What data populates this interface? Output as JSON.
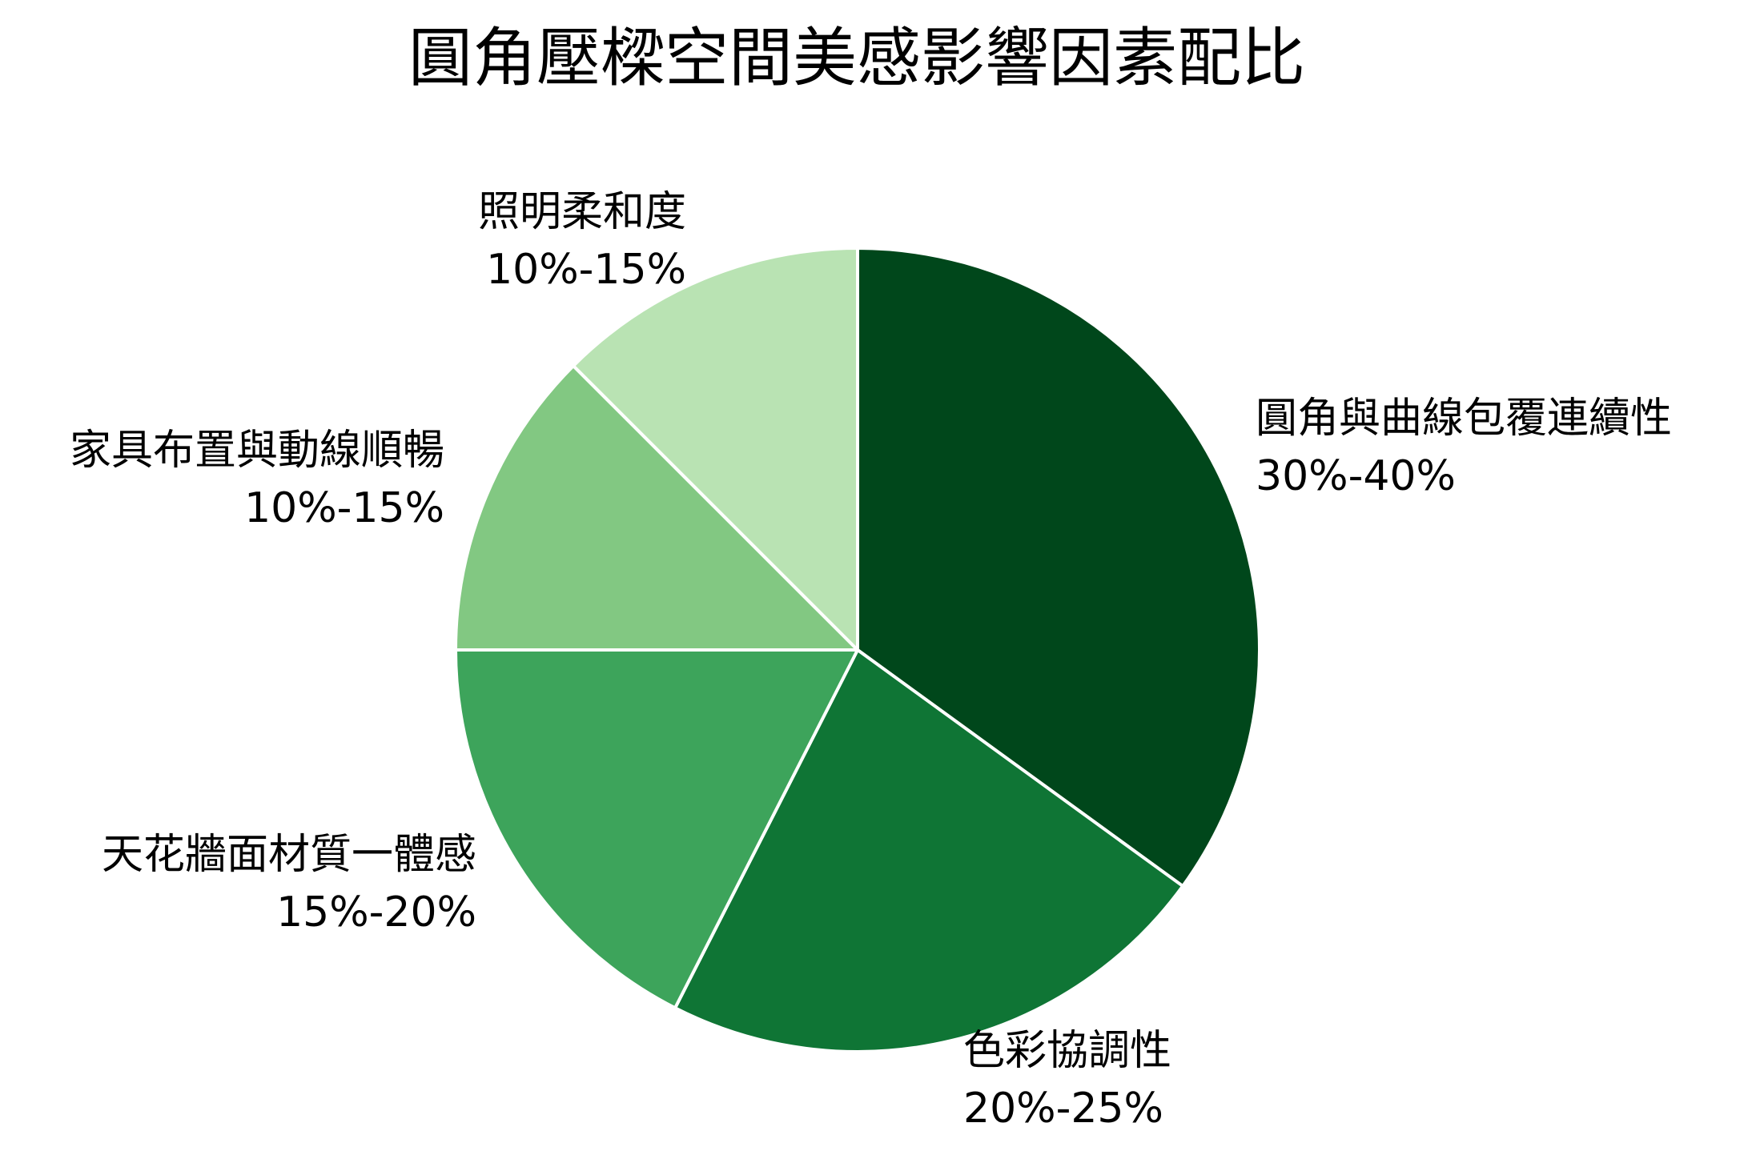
{
  "chart_data": {
    "type": "pie",
    "title": "圓角壓樑空間美感影響因素配比",
    "start": "12 o'clock",
    "direction": "clockwise",
    "edge_color": "#ffffff",
    "slices": [
      {
        "label": "圓角與曲線包覆連續性",
        "range_text": "30%-40%",
        "value": 35,
        "color": "#00471b"
      },
      {
        "label": "色彩協調性",
        "range_text": "20%-25%",
        "value": 22.5,
        "color": "#0f7535"
      },
      {
        "label": "天花牆面材質一體感",
        "range_text": "15%-20%",
        "value": 17.5,
        "color": "#3da45b"
      },
      {
        "label": "家具布置與動線順暢",
        "range_text": "10%-15%",
        "value": 12.5,
        "color": "#82c882"
      },
      {
        "label": "照明柔和度",
        "range_text": "10%-15%",
        "value": 12.5,
        "color": "#b9e3b3"
      }
    ]
  }
}
